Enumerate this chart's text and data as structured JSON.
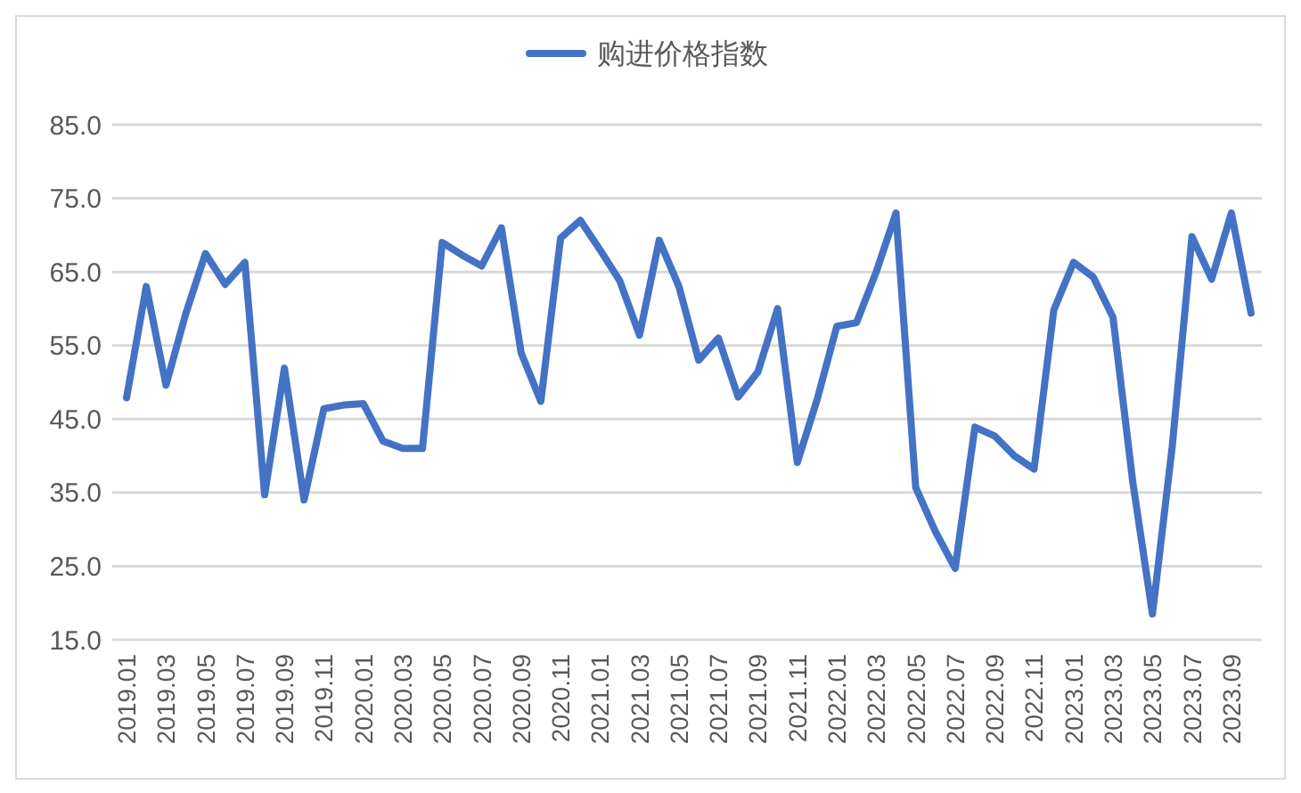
{
  "chart_data": {
    "type": "line",
    "categories": [
      "2019.01",
      null,
      "2019.03",
      null,
      "2019.05",
      null,
      "2019.07",
      null,
      "2019.09",
      null,
      "2019.11",
      null,
      "2020.01",
      null,
      "2020.03",
      null,
      "2020.05",
      null,
      "2020.07",
      null,
      "2020.09",
      null,
      "2020.11",
      null,
      "2021.01",
      null,
      "2021.03",
      null,
      "2021.05",
      null,
      "2021.07",
      null,
      "2021.09",
      null,
      "2021.11",
      null,
      "2022.01",
      null,
      "2022.03",
      null,
      "2022.05",
      null,
      "2022.07",
      null,
      "2022.09",
      null,
      "2022.11",
      null,
      "2023.01",
      null,
      "2023.03",
      null,
      "2023.05",
      null,
      "2023.07",
      null,
      "2023.09",
      null
    ],
    "series": [
      {
        "name": "购进价格指数",
        "color": "#4472c4",
        "values": [
          47.9,
          63.0,
          49.6,
          59.3,
          67.5,
          63.3,
          66.3,
          34.7,
          51.9,
          34.0,
          46.4,
          46.9,
          47.1,
          42.0,
          41.0,
          41.0,
          69.0,
          67.3,
          65.8,
          71.0,
          54.0,
          47.4,
          69.6,
          72.0,
          68.0,
          63.8,
          56.4,
          69.3,
          63.0,
          53.0,
          56.0,
          48.0,
          51.4,
          60.0,
          39.1,
          47.6,
          57.6,
          58.1,
          65.0,
          73.0,
          35.7,
          29.7,
          24.7,
          43.9,
          42.7,
          40.0,
          38.2,
          59.8,
          66.3,
          64.3,
          58.8,
          36.5,
          18.5,
          41.2,
          69.8,
          64.0,
          73.0,
          59.4
        ]
      }
    ],
    "ylim": [
      15,
      85
    ],
    "yticks": [
      {
        "value": 15,
        "label": "15.0"
      },
      {
        "value": 25,
        "label": "25.0"
      },
      {
        "value": 35,
        "label": "35.0"
      },
      {
        "value": 45,
        "label": "45.0"
      },
      {
        "value": 55,
        "label": "55.0"
      },
      {
        "value": 65,
        "label": "65.0"
      },
      {
        "value": 75,
        "label": "75.0"
      },
      {
        "value": 85,
        "label": "85.0"
      }
    ],
    "grid": "y",
    "legend": "top",
    "marker": "none",
    "line_style": "solid"
  }
}
